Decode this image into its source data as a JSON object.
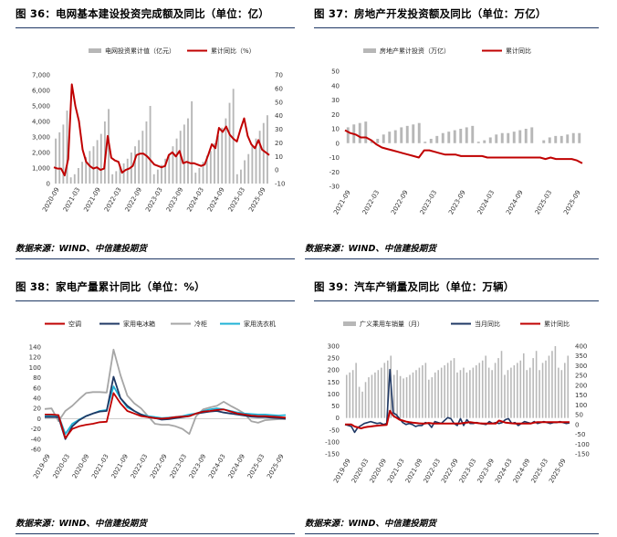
{
  "sources": {
    "c36": "数据来源：WIND、中信建投期货",
    "c37": "数据来源：WIND、中信建投期货",
    "c38": "数据来源：WIND、中信建投期货",
    "c39": "数据来源：WIND、中信建投期货"
  },
  "colors": {
    "bar": "#b7b7b7",
    "red": "#c00000",
    "navy": "#1f3864",
    "gray": "#a6a6a6",
    "cyan": "#1fb2d6",
    "title_rule": "#1f3864"
  },
  "chart_data": [
    {
      "id": "c36",
      "type": "bar+line",
      "title": "图 36：电网基本建设投资完成额及同比（单位：亿）",
      "legend": [
        "电网投资累计值（亿元）",
        "累计同比（%）"
      ],
      "yleft": {
        "min": 0,
        "max": 7000,
        "ticks": [
          "7,000",
          "6,000",
          "5,000",
          "4,000",
          "3,000",
          "2,000",
          "1,000",
          "0"
        ]
      },
      "yright": {
        "min": -10,
        "max": 70,
        "ticks": [
          "70",
          "60",
          "50",
          "40",
          "30",
          "20",
          "10",
          "0",
          "-10"
        ]
      },
      "xticks": [
        "2020-09",
        "2021-03",
        "2021-09",
        "2022-03",
        "2022-09",
        "2023-03",
        "2023-09",
        "2024-03",
        "2024-09",
        "2025-03",
        "2025-09"
      ],
      "bars": [
        2900,
        3300,
        3800,
        4700,
        400,
        600,
        1000,
        1400,
        1700,
        2100,
        2400,
        2800,
        3200,
        4000,
        4800,
        600,
        800,
        1100,
        1300,
        1600,
        2000,
        2400,
        2800,
        3400,
        4000,
        5000,
        600,
        900,
        1200,
        1600,
        1900,
        2400,
        2900,
        3400,
        3800,
        4200,
        5300,
        700,
        1000,
        1400,
        1800,
        2100,
        2600,
        3100,
        3600,
        4200,
        5200,
        6100,
        600,
        900,
        1500,
        1900,
        2500,
        2900,
        3400,
        3900,
        4400
      ],
      "line": [
        2,
        1,
        1,
        -4,
        8,
        63,
        47,
        36,
        15,
        6,
        3,
        1,
        2,
        0,
        1,
        25,
        9,
        7,
        6,
        -2,
        0,
        1,
        3,
        11,
        12,
        12,
        10,
        7,
        4,
        3,
        2,
        3,
        11,
        13,
        10,
        14,
        5,
        6,
        5,
        5,
        4,
        3,
        4,
        11,
        19,
        16,
        31,
        28,
        32,
        26,
        23,
        21,
        30,
        38,
        25,
        19,
        16,
        22,
        15,
        13,
        11
      ]
    },
    {
      "id": "c37",
      "type": "bar+line",
      "title": "图 37：房地产开发投资额及同比（单位：万亿）",
      "legend": [
        "房地产累计投资（万亿）",
        "累计同比"
      ],
      "yaxis": {
        "min": -30,
        "max": 50,
        "ticks": [
          "50",
          "40",
          "30",
          "20",
          "10",
          "0",
          "-10",
          "-20",
          "-30"
        ]
      },
      "xticks": [
        "2021-09",
        "2022-03",
        "2022-09",
        "2023-03",
        "2023-09",
        "2024-03",
        "2024-09",
        "2025-03",
        "2025-09"
      ],
      "bars": [
        11,
        13,
        14,
        15,
        2,
        3,
        6,
        8,
        9,
        11,
        12,
        13,
        14,
        1,
        3,
        5,
        7,
        8,
        9,
        10,
        11,
        12,
        1,
        2,
        4,
        6,
        7,
        7,
        8,
        9,
        10,
        11,
        0,
        2,
        4,
        5,
        5,
        6,
        7,
        7
      ],
      "line": [
        9,
        7,
        6,
        4,
        4,
        2,
        -1,
        -3,
        -4,
        -5,
        -6,
        -7,
        -8,
        -9,
        -10,
        -5,
        -5,
        -6,
        -7,
        -8,
        -8,
        -8,
        -9,
        -9,
        -9,
        -9,
        -9,
        -10,
        -10,
        -10,
        -10,
        -10,
        -10,
        -10,
        -10,
        -10,
        -10,
        -10,
        -11,
        -10,
        -11,
        -11,
        -11,
        -11,
        -12,
        -14
      ]
    },
    {
      "id": "c38",
      "type": "line",
      "title": "图 38：家电产量累计同比（单位：%）",
      "legend": [
        "空调",
        "家用电冰箱",
        "冷柜",
        "家用洗衣机"
      ],
      "yaxis": {
        "min": -60,
        "max": 140,
        "ticks": [
          "140",
          "120",
          "100",
          "80",
          "60",
          "40",
          "20",
          "0",
          "-20",
          "-40",
          "-60"
        ]
      },
      "xticks": [
        "2019-09",
        "2020-03",
        "2020-09",
        "2021-03",
        "2021-09",
        "2022-03",
        "2022-09",
        "2023-03",
        "2023-09",
        "2024-03",
        "2024-09",
        "2025-03",
        "2025-09"
      ],
      "series": [
        {
          "name": "空调",
          "values": [
            8,
            8,
            7,
            -38,
            -20,
            -15,
            -12,
            -10,
            -7,
            -6,
            50,
            30,
            15,
            10,
            5,
            3,
            1,
            0,
            1,
            3,
            4,
            5,
            10,
            14,
            15,
            17,
            18,
            14,
            10,
            8,
            6,
            5,
            5,
            4,
            3,
            2
          ]
        },
        {
          "name": "家用电冰箱",
          "values": [
            3,
            3,
            3,
            -40,
            -15,
            -3,
            5,
            10,
            14,
            15,
            82,
            40,
            25,
            15,
            8,
            3,
            1,
            -2,
            -1,
            1,
            3,
            5,
            10,
            12,
            14,
            15,
            12,
            10,
            8,
            6,
            4,
            3,
            3,
            2,
            1,
            0
          ]
        },
        {
          "name": "冷柜",
          "values": [
            19,
            20,
            -5,
            15,
            25,
            38,
            50,
            52,
            52,
            51,
            135,
            85,
            45,
            30,
            20,
            5,
            -10,
            -12,
            -12,
            -15,
            -20,
            -30,
            5,
            18,
            22,
            25,
            33,
            25,
            18,
            10,
            -5,
            -8,
            -3,
            -2,
            -1,
            -1
          ]
        },
        {
          "name": "家用洗衣机",
          "values": [
            5,
            6,
            6,
            -30,
            -10,
            -2,
            5,
            10,
            15,
            17,
            63,
            40,
            22,
            15,
            8,
            5,
            3,
            1,
            2,
            3,
            5,
            8,
            10,
            15,
            18,
            20,
            18,
            15,
            12,
            10,
            9,
            8,
            8,
            7,
            6,
            7
          ]
        }
      ]
    },
    {
      "id": "c39",
      "type": "bar+line",
      "title": "图 39：汽车产销量及同比（单位：万辆）",
      "legend": [
        "广义乘用车销量（月）",
        "当月同比",
        "累计同比"
      ],
      "yleft": {
        "min": -150,
        "max": 300,
        "ticks": [
          "300",
          "250",
          "200",
          "150",
          "100",
          "50",
          "0",
          "-50",
          "-100",
          "-150"
        ]
      },
      "yright": {
        "min": -150,
        "max": 400,
        "ticks": [
          "400",
          "350",
          "300",
          "250",
          "200",
          "150",
          "100",
          "50",
          "0",
          "-50",
          "-100",
          "-150"
        ]
      },
      "xticks": [
        "2019-09",
        "2020-03",
        "2020-09",
        "2021-03",
        "2021-09",
        "2022-03",
        "2022-09",
        "2023-03",
        "2023-09",
        "2024-03",
        "2024-09",
        "2025-03",
        "2025-09"
      ],
      "bars": [
        180,
        190,
        200,
        230,
        130,
        110,
        150,
        170,
        180,
        190,
        200,
        210,
        230,
        240,
        260,
        180,
        200,
        175,
        165,
        170,
        180,
        190,
        200,
        210,
        220,
        230,
        160,
        170,
        190,
        200,
        210,
        220,
        230,
        240,
        250,
        190,
        200,
        210,
        190,
        200,
        210,
        220,
        230,
        240,
        260,
        210,
        200,
        230,
        250,
        280,
        180,
        200,
        210,
        220,
        230,
        240,
        270,
        200,
        210,
        250,
        280,
        200,
        230,
        240,
        260,
        280,
        300,
        210,
        200,
        230,
        260
      ],
      "line_monthly": [
        0,
        -5,
        -10,
        -40,
        -15,
        -5,
        5,
        10,
        15,
        10,
        5,
        8,
        0,
        5,
        280,
        60,
        50,
        30,
        10,
        0,
        5,
        0,
        -10,
        -5,
        -5,
        10,
        5,
        -15,
        15,
        10,
        5,
        20,
        35,
        30,
        5,
        -5,
        30,
        -5,
        25,
        5,
        5,
        10,
        5,
        3,
        0,
        15,
        5,
        10,
        5,
        10,
        25,
        30,
        5,
        10,
        -5,
        5,
        15,
        10,
        5,
        15,
        5,
        10,
        15,
        10,
        5,
        10,
        10,
        15,
        10,
        5,
        8
      ],
      "line_cumulative": [
        0,
        0,
        0,
        -10,
        -15,
        -20,
        -15,
        -12,
        -10,
        -8,
        -6,
        -4,
        -3,
        -2,
        70,
        45,
        35,
        25,
        20,
        15,
        12,
        10,
        8,
        6,
        5,
        5,
        8,
        6,
        5,
        5,
        5,
        5,
        5,
        5,
        5,
        5,
        5,
        8,
        10,
        12,
        10,
        8,
        6,
        5,
        5,
        5,
        5,
        5,
        20,
        15,
        10,
        8,
        6,
        5,
        5,
        5,
        5,
        5,
        5,
        10,
        12,
        12,
        12,
        12,
        12,
        12,
        12,
        12,
        12,
        12,
        12
      ]
    }
  ]
}
